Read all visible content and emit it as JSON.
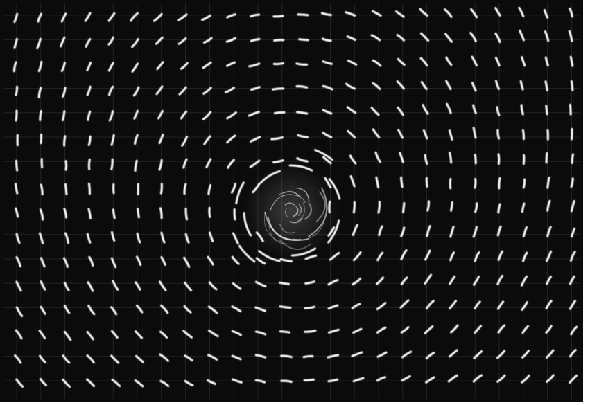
{
  "image": {
    "background_color": "#0b0b0b",
    "grid_color": "#7a7a7a",
    "streak_color": "#f2f2f2",
    "frame_color": "#ffffff"
  }
}
